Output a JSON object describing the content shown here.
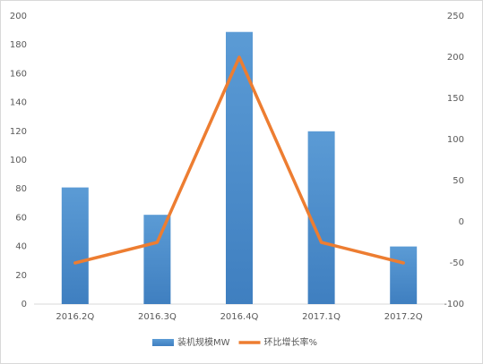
{
  "chart_data": {
    "type": "bar",
    "categories": [
      "2016.2Q",
      "2016.3Q",
      "2016.4Q",
      "2017.1Q",
      "2017.2Q"
    ],
    "series": [
      {
        "name": "装机规模MW",
        "type": "bar",
        "color": "#5b9bd5",
        "values": [
          81,
          62,
          189,
          120,
          40
        ]
      },
      {
        "name": "环比增长率%",
        "type": "line",
        "axis": "y2",
        "color": "#ed7d31",
        "values": [
          -50,
          -25,
          200,
          -25,
          -50
        ]
      }
    ],
    "ylim": [
      0,
      200
    ],
    "yticks": [
      0,
      20,
      40,
      60,
      80,
      100,
      120,
      140,
      160,
      180,
      200
    ],
    "y2lim": [
      -100,
      250
    ],
    "y2ticks": [
      -100,
      -50,
      0,
      50,
      100,
      150,
      200,
      250
    ],
    "grid": false,
    "legend": "bottom"
  }
}
